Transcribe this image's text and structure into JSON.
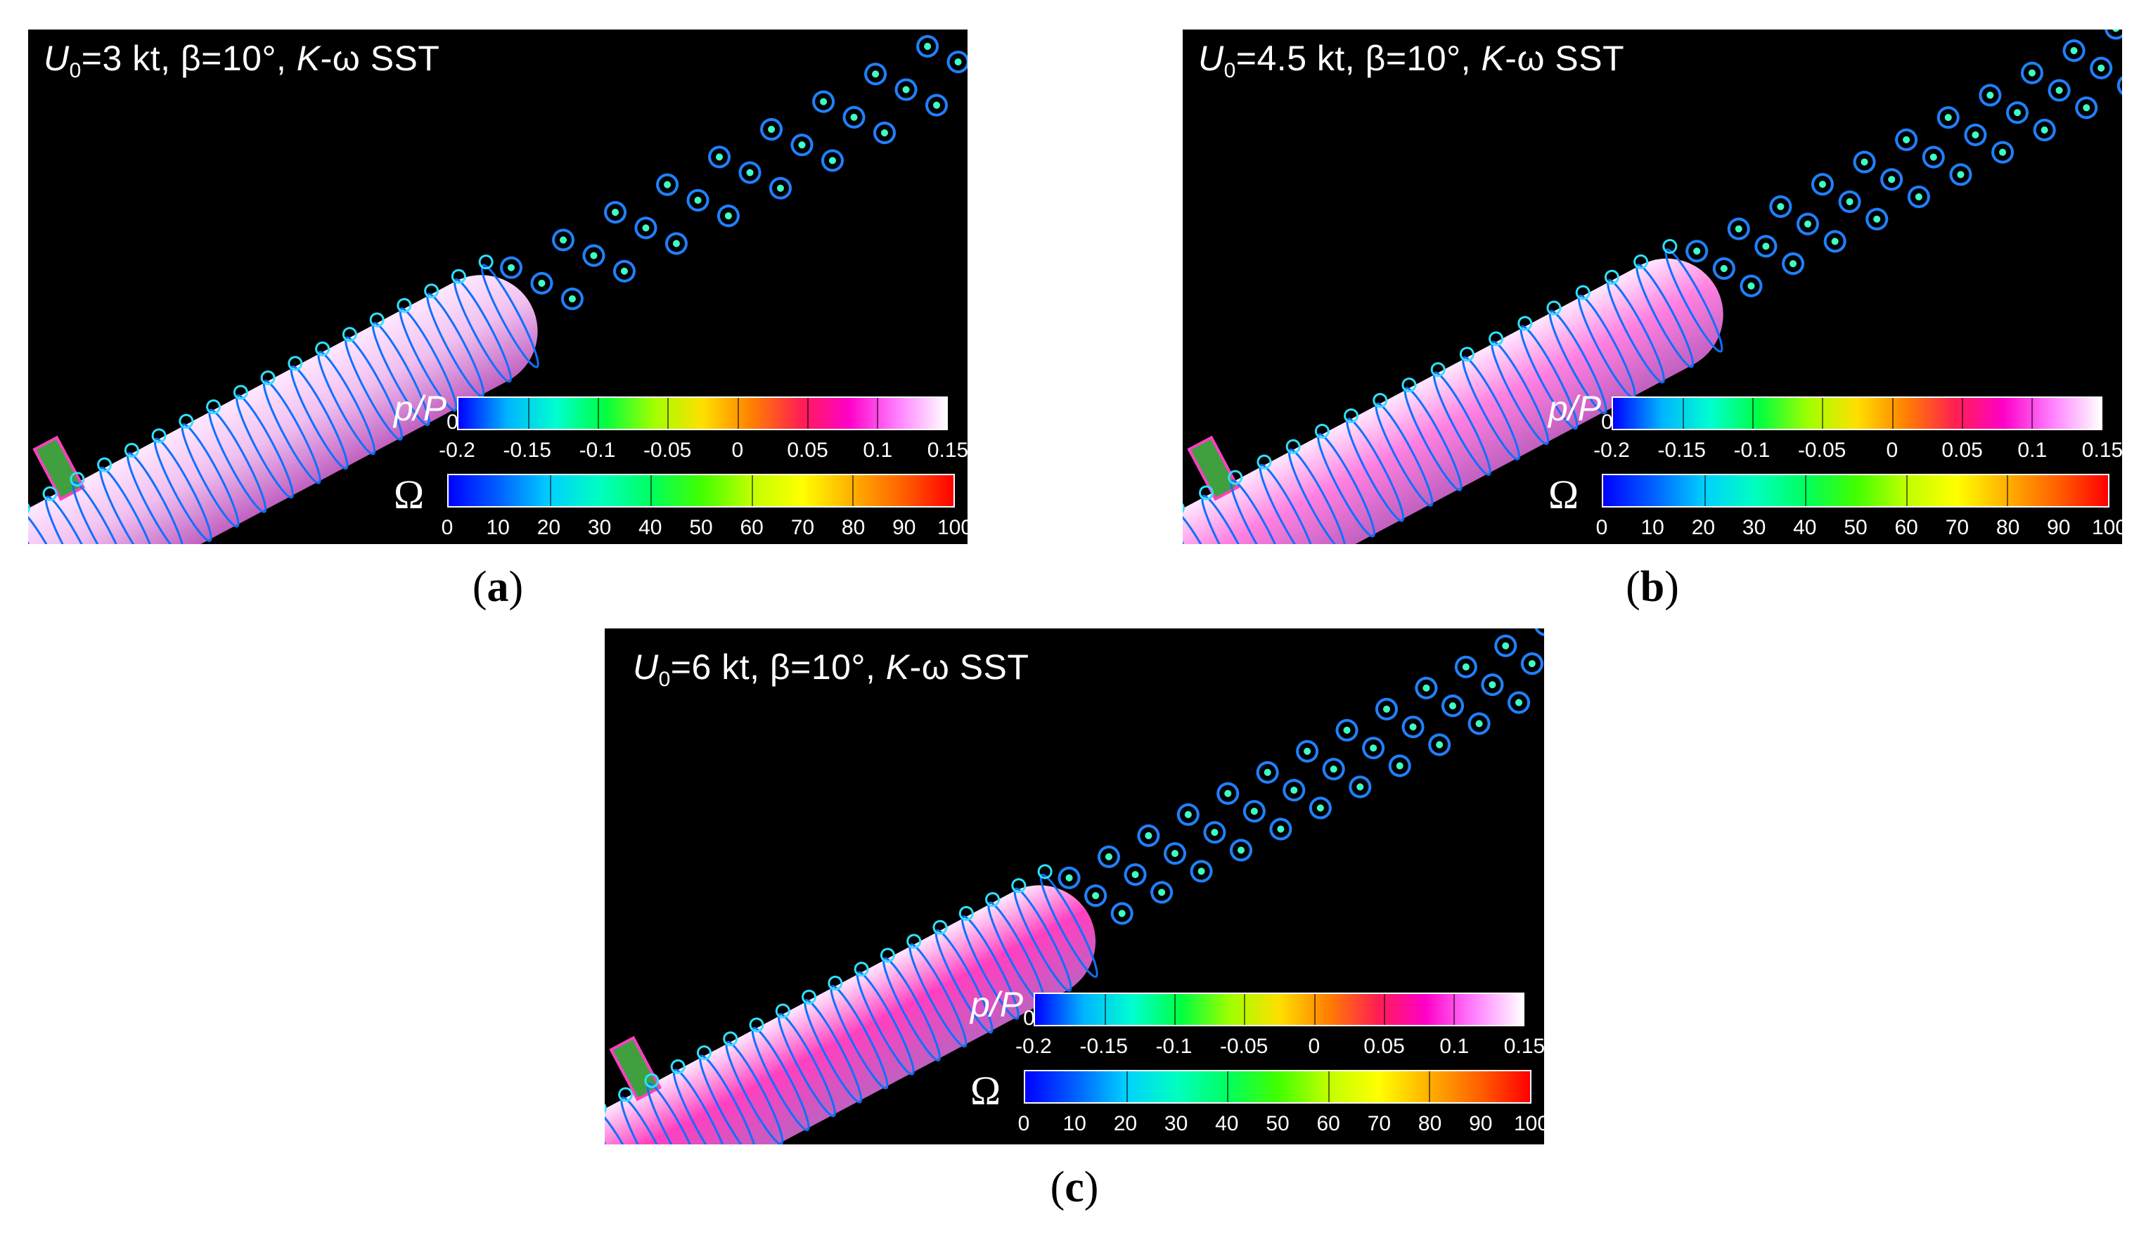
{
  "panels": [
    {
      "id": "a",
      "title": {
        "u_symbol": "U",
        "u_sub": "0",
        "speed": "=3 kt, β=10°,",
        "model_italic": "K",
        "model_rest": "-ω SST"
      },
      "pressure_label": {
        "symbol": "p/P",
        "sub": "0"
      },
      "pressure_ticks": [
        "-0.2",
        "-0.15",
        "-0.1",
        "-0.05",
        "0",
        "0.05",
        "0.1",
        "0.15"
      ],
      "omega_label": "Ω",
      "omega_ticks": [
        "0",
        "10",
        "20",
        "30",
        "40",
        "50",
        "60",
        "70",
        "80",
        "90",
        "100"
      ],
      "caption": {
        "open": "(",
        "letter": "a",
        "close": ")"
      }
    },
    {
      "id": "b",
      "title": {
        "u_symbol": "U",
        "u_sub": "0",
        "speed": "=4.5 kt, β=10°,",
        "model_italic": "K",
        "model_rest": "-ω SST"
      },
      "pressure_label": {
        "symbol": "p/P",
        "sub": "0"
      },
      "pressure_ticks": [
        "-0.2",
        "-0.15",
        "-0.1",
        "-0.05",
        "0",
        "0.05",
        "0.1",
        "0.15"
      ],
      "omega_label": "Ω",
      "omega_ticks": [
        "0",
        "10",
        "20",
        "30",
        "40",
        "50",
        "60",
        "70",
        "80",
        "90",
        "100"
      ],
      "caption": {
        "open": "(",
        "letter": "b",
        "close": ")"
      }
    },
    {
      "id": "c",
      "title": {
        "u_symbol": "U",
        "u_sub": "0",
        "speed": "=6 kt, β=10°,",
        "model_italic": "K",
        "model_rest": "-ω SST"
      },
      "pressure_label": {
        "symbol": "p/P",
        "sub": "0"
      },
      "pressure_ticks": [
        "-0.2",
        "-0.15",
        "-0.1",
        "-0.05",
        "0",
        "0.05",
        "0.1",
        "0.15"
      ],
      "omega_label": "Ω",
      "omega_ticks": [
        "0",
        "10",
        "20",
        "30",
        "40",
        "50",
        "60",
        "70",
        "80",
        "90",
        "100"
      ],
      "caption": {
        "open": "(",
        "letter": "c",
        "close": ")"
      }
    }
  ],
  "colors": {
    "background": "#000000",
    "pressure_scale": [
      "#0000ff",
      "#00b4ff",
      "#00ffd0",
      "#00ff40",
      "#a0ff00",
      "#ffe000",
      "#ff8000",
      "#ff2050",
      "#ff00c8",
      "#ff80ff",
      "#ffffff"
    ],
    "omega_scale": [
      "#0000ff",
      "#0060ff",
      "#00d0ff",
      "#00ffc0",
      "#00ff60",
      "#40ff00",
      "#c0ff00",
      "#ffff00",
      "#ffb000",
      "#ff6000",
      "#ff0000"
    ],
    "hull": "#f4c8f0",
    "vortex": "#1070ff"
  }
}
